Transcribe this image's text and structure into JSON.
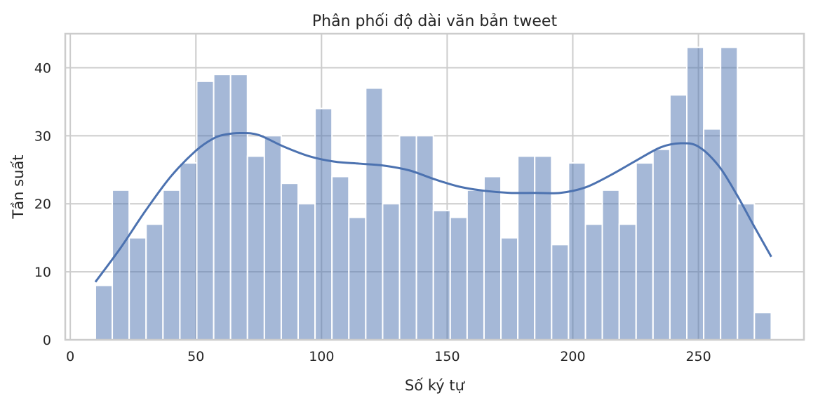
{
  "chart_data": {
    "type": "histogram",
    "title": "Phân phối độ dài văn bản tweet",
    "xlabel": "Số ký tự",
    "ylabel": "Tần suất",
    "xlim": [
      -2,
      292
    ],
    "ylim": [
      0,
      45
    ],
    "xticks": [
      0,
      50,
      100,
      150,
      200,
      250
    ],
    "yticks": [
      0,
      10,
      20,
      30,
      40
    ],
    "grid": true,
    "bin_edges": [
      10,
      16.725,
      23.45,
      30.175,
      36.9,
      43.625,
      50.35,
      57.075,
      63.8,
      70.525,
      77.25,
      83.975,
      90.7,
      97.425,
      104.15,
      110.875,
      117.6,
      124.325,
      131.05,
      137.775,
      144.5,
      151.225,
      157.95,
      164.675,
      171.4,
      178.125,
      184.85,
      191.575,
      198.3,
      205.025,
      211.75,
      218.475,
      225.2,
      231.925,
      238.65,
      245.375,
      252.1,
      258.825,
      265.55,
      272.275,
      279
    ],
    "counts": [
      8,
      22,
      15,
      17,
      22,
      26,
      38,
      39,
      39,
      27,
      30,
      23,
      20,
      34,
      24,
      18,
      37,
      20,
      30,
      30,
      19,
      18,
      22,
      24,
      15,
      27,
      27,
      14,
      26,
      17,
      22,
      17,
      26,
      28,
      36,
      43,
      31,
      43,
      20,
      4
    ],
    "kde": {
      "x": [
        10,
        20,
        30,
        40,
        50,
        57,
        62,
        68,
        75,
        85,
        95,
        105,
        115,
        125,
        135,
        145,
        155,
        165,
        175,
        185,
        195,
        205,
        215,
        225,
        235,
        243,
        250,
        258,
        265,
        272,
        279
      ],
      "y": [
        8.5,
        13.5,
        19,
        24,
        27.8,
        29.6,
        30.2,
        30.4,
        30.1,
        28.4,
        27,
        26.2,
        25.9,
        25.6,
        24.9,
        23.6,
        22.5,
        21.9,
        21.6,
        21.6,
        21.6,
        22.4,
        24.2,
        26.3,
        28.3,
        28.9,
        28.4,
        25.6,
        21.5,
        16.8,
        12.2
      ]
    },
    "colors": {
      "bar": "#4c72b0",
      "line": "#4c72b0"
    }
  }
}
